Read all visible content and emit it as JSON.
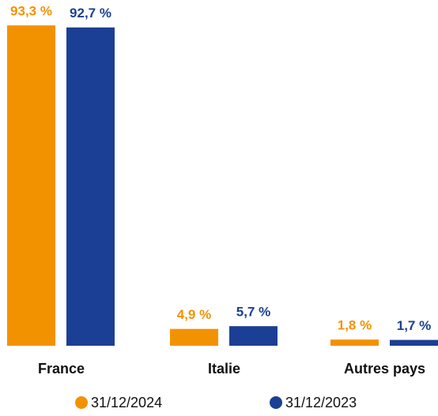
{
  "chart_data": {
    "type": "bar",
    "categories": [
      "France",
      "Italie",
      "Autres pays"
    ],
    "series": [
      {
        "name": "31/12/2024",
        "color": "#f39200",
        "values": [
          93.3,
          4.9,
          1.8
        ],
        "value_labels": [
          "93,3 %",
          "4,9 %",
          "1,8 %"
        ]
      },
      {
        "name": "31/12/2023",
        "color": "#1b3f94",
        "values": [
          92.7,
          5.7,
          1.7
        ],
        "value_labels": [
          "92,7 %",
          "5,7 %",
          "1,7 %"
        ]
      }
    ]
  }
}
